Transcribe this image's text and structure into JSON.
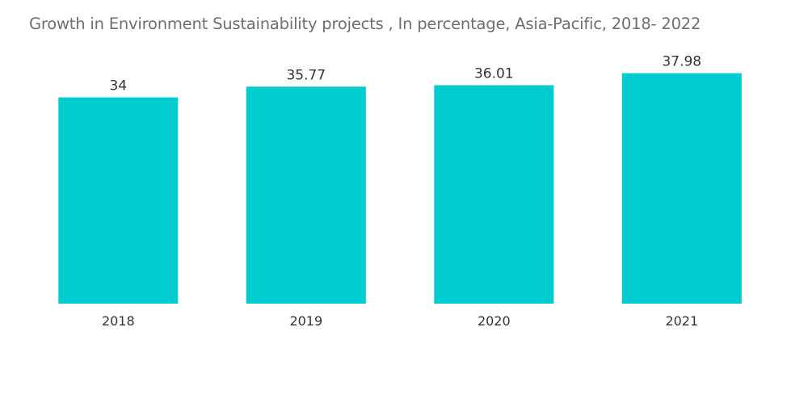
{
  "chart_data": {
    "type": "bar",
    "title": "Growth in Environment Sustainability projects  , In percentage, Asia-Pacific, 2018- 2022",
    "categories": [
      "2018",
      "2019",
      "2020",
      "2021"
    ],
    "values": [
      34,
      35.77,
      36.01,
      37.98
    ],
    "value_labels": [
      "34",
      "35.77",
      "36.01",
      "37.98"
    ],
    "xlabel": "",
    "ylabel": "",
    "ylim": [
      0,
      41
    ],
    "grid": false,
    "legend": "none",
    "bar_color": "#00cccf"
  }
}
